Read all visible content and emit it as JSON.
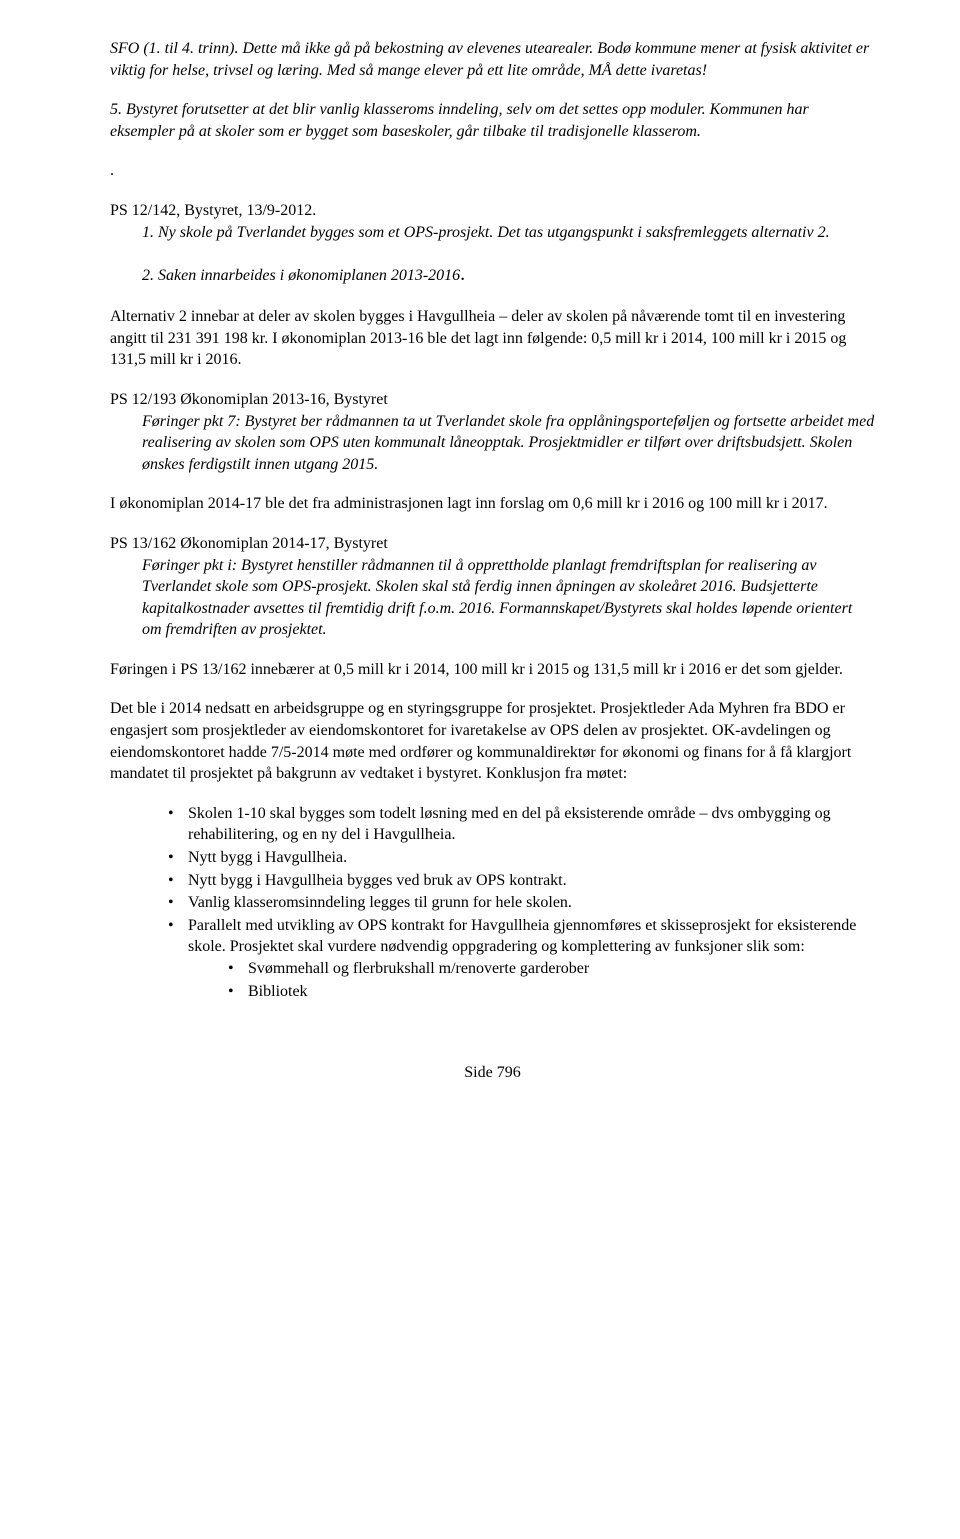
{
  "intro": {
    "p1": "SFO (1. til 4. trinn). Dette må ikke gå på bekostning av elevenes utearealer. Bodø kommune mener at fysisk aktivitet er viktig for helse, trivsel og læring. Med så mange elever på ett lite område, MÅ dette ivaretas!",
    "p2": "5. Bystyret forutsetter at det blir vanlig klasseroms inndeling, selv om det settes opp moduler. Kommunen har eksempler på at skoler som er bygget som baseskoler, går tilbake til tradisjonelle klasserom."
  },
  "dot": ".",
  "ps1": {
    "title": "PS 12/142,  Bystyret, 13/9-2012.",
    "item1": "1. Ny skole på Tverlandet bygges som et OPS-prosjekt. Det tas utgangspunkt i saksfremleggets alternativ 2.",
    "item2_prefix": "2. Saken innarbeides i økonomiplanen 2013-2016",
    "item2_period": "."
  },
  "alt2": "Alternativ 2 innebar at deler av skolen bygges i Havgullheia – deler av skolen på nåværende tomt til en investering angitt til 231 391 198 kr.  I økonomiplan 2013-16 ble det lagt inn følgende: 0,5 mill kr i 2014, 100 mill kr i 2015 og 131,5 mill kr i 2016.",
  "ps2": {
    "title": "PS 12/193 Økonomiplan 2013-16, Bystyret",
    "body": "Føringer pkt 7: Bystyret ber rådmannen ta ut Tverlandet skole fra opplåningsporteføljen og fortsette arbeidet med realisering av skolen som OPS uten kommunalt låneopptak. Prosjektmidler er tilført over driftsbudsjett. Skolen ønskes ferdigstilt innen utgang 2015."
  },
  "okplan": "I økonomiplan 2014-17 ble det fra administrasjonen lagt inn forslag om 0,6 mill kr i 2016 og 100 mill kr i 2017.",
  "ps3": {
    "title": "PS 13/162 Økonomiplan 2014-17, Bystyret",
    "body": "Føringer pkt i: Bystyret henstiller rådmannen til å opprettholde planlagt fremdriftsplan for realisering av Tverlandet skole som OPS-prosjekt. Skolen skal stå ferdig innen åpningen av skoleåret 2016. Budsjetterte kapitalkostnader avsettes til fremtidig drift f.o.m. 2016. Formannskapet/Bystyrets skal holdes løpende orientert om fremdriften av prosjektet."
  },
  "foring": "Føringen i PS 13/162 innebærer at 0,5 mill kr i 2014, 100 mill kr i 2015 og 131,5 mill kr i 2016 er det som gjelder.",
  "arbgruppe": "Det ble i 2014 nedsatt en arbeidsgruppe og en styringsgruppe for prosjektet.  Prosjektleder Ada Myhren fra BDO er engasjert som prosjektleder av eiendomskontoret for ivaretakelse av OPS delen av prosjektet. OK-avdelingen og eiendomskontoret hadde 7/5-2014 møte med ordfører og kommunaldirektør for økonomi og finans for å få klargjort mandatet til prosjektet på bakgrunn av vedtaket i bystyret.  Konklusjon fra møtet:",
  "bullets": {
    "b1": "Skolen 1-10 skal bygges som todelt løsning med en del på eksisterende område – dvs ombygging og rehabilitering, og en ny del i Havgullheia.",
    "b2": "Nytt bygg i Havgullheia.",
    "b3": "Nytt bygg i Havgullheia bygges ved bruk av OPS kontrakt.",
    "b4": "Vanlig klasseromsinndeling legges til grunn for hele skolen.",
    "b5": "Parallelt med utvikling av OPS kontrakt for Havgullheia gjennomføres et skisseprosjekt for eksisterende skole. Prosjektet skal vurdere nødvendig oppgradering og komplettering av funksjoner slik som:",
    "sub1": "Svømmehall og flerbrukshall m/renoverte garderober",
    "sub2": "Bibliotek"
  },
  "footer": "Side 796"
}
